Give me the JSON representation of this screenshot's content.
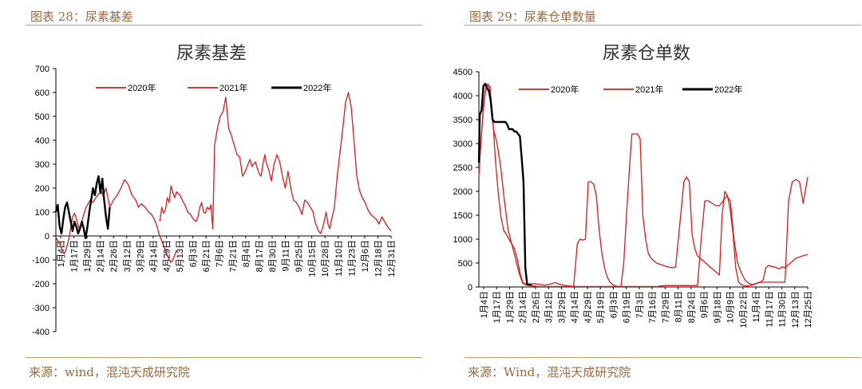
{
  "colors": {
    "caption": "#9c6a3c",
    "rule": "#c9a06a",
    "series_2020": "#d81e1e",
    "series_2021": "#d81e1e",
    "series_2022": "#000000"
  },
  "panels": [
    {
      "caption": "图表 28：尿素基差",
      "source": "来源：wind，混沌天成研究院"
    },
    {
      "caption": "图表 29：尿素仓单数量",
      "source": "来源：Wind，混沌天成研究院"
    }
  ],
  "chart_data": [
    {
      "type": "line",
      "title": "尿素基差",
      "xlabel": "",
      "ylabel": "",
      "ylim": [
        -400,
        700
      ],
      "yticks": [
        -400,
        -300,
        -200,
        -100,
        0,
        100,
        200,
        300,
        400,
        500,
        600,
        700
      ],
      "grid": false,
      "legend_position": "top",
      "x_tick_labels": [
        "1月4日",
        "1月17日",
        "1月29日",
        "2月14日",
        "2月26日",
        "3月12日",
        "3月29日",
        "4月14日",
        "4月29日",
        "5月13日",
        "6月3日",
        "6月21日",
        "7月6日",
        "7月21日",
        "8月4日",
        "8月17日",
        "8月30日",
        "9月11日",
        "9月25日",
        "10月15日",
        "10月28日",
        "11月10日",
        "11月23日",
        "12月6日",
        "12月18日",
        "12月31日"
      ],
      "x_day_range": [
        4,
        365
      ],
      "series": [
        {
          "name": "2020年",
          "x": [
            4,
            6,
            9,
            11,
            13,
            15,
            17,
            19,
            22,
            24,
            27,
            29,
            31,
            33,
            36,
            38,
            41,
            44,
            47,
            50,
            53,
            55,
            58,
            62,
            66,
            70,
            74,
            78,
            82,
            86,
            90,
            93,
            96,
            100,
            104,
            107,
            110,
            113,
            115,
            118,
            120,
            122,
            124,
            126,
            128,
            130,
            132,
            134
          ],
          "y": [
            -5,
            -20,
            -40,
            -60,
            -75,
            -55,
            -30,
            10,
            80,
            95,
            60,
            30,
            50,
            75,
            115,
            130,
            150,
            140,
            160,
            175,
            185,
            165,
            200,
            120,
            150,
            170,
            200,
            235,
            215,
            170,
            150,
            120,
            135,
            120,
            100,
            90,
            70,
            40,
            10,
            -20,
            -40,
            -60,
            -80,
            -100,
            -110,
            -100,
            -80,
            -60
          ]
        },
        {
          "name": "2021年",
          "x": [
            116,
            118,
            120,
            122,
            124,
            126,
            128,
            130,
            132,
            134,
            136,
            138,
            140,
            143,
            146,
            149,
            152,
            155,
            157,
            159,
            161,
            163,
            165,
            167,
            169,
            171,
            173,
            175,
            178,
            181,
            184,
            187,
            190,
            193,
            196,
            199,
            202,
            205,
            208,
            211,
            213,
            215,
            217,
            219,
            221,
            223,
            225,
            227,
            229,
            231,
            233,
            236,
            239,
            242,
            245,
            248,
            251,
            254,
            257,
            260,
            263,
            266,
            269,
            272,
            275,
            278,
            281,
            283,
            285,
            287,
            289,
            291,
            293,
            295,
            297,
            299,
            301,
            304,
            307,
            310,
            313,
            316,
            319,
            322,
            325,
            328,
            331,
            334,
            337,
            340,
            343,
            346,
            349,
            352,
            355,
            358,
            361,
            363,
            365
          ],
          "y": [
            60,
            120,
            95,
            110,
            160,
            140,
            210,
            180,
            160,
            185,
            175,
            170,
            150,
            130,
            100,
            90,
            70,
            60,
            80,
            120,
            140,
            100,
            95,
            120,
            110,
            130,
            30,
            380,
            450,
            500,
            520,
            580,
            450,
            420,
            380,
            340,
            330,
            250,
            270,
            300,
            320,
            290,
            300,
            310,
            280,
            260,
            250,
            300,
            340,
            300,
            280,
            230,
            300,
            340,
            310,
            250,
            200,
            270,
            200,
            150,
            140,
            120,
            90,
            150,
            140,
            120,
            100,
            60,
            40,
            20,
            10,
            30,
            60,
            100,
            50,
            30,
            70,
            120,
            250,
            350,
            450,
            560,
            600,
            540,
            400,
            250,
            190,
            160,
            140,
            110,
            90,
            80,
            70,
            50,
            80,
            60,
            40,
            30,
            20
          ]
        },
        {
          "name": "2022年",
          "x": [
            4,
            6,
            8,
            10,
            12,
            14,
            16,
            18,
            20,
            22,
            24,
            26,
            28,
            30,
            32,
            34,
            36,
            38,
            40,
            42,
            44,
            46,
            48,
            50,
            52,
            54,
            56,
            58,
            60,
            62
          ],
          "y": [
            100,
            130,
            40,
            10,
            70,
            120,
            140,
            100,
            60,
            20,
            60,
            40,
            10,
            30,
            60,
            30,
            -10,
            40,
            100,
            150,
            200,
            170,
            220,
            250,
            180,
            240,
            150,
            80,
            30,
            120
          ]
        }
      ]
    },
    {
      "type": "line",
      "title": "尿素仓单数",
      "xlabel": "",
      "ylabel": "",
      "ylim": [
        0,
        4500
      ],
      "yticks": [
        0,
        500,
        1000,
        1500,
        2000,
        2500,
        3000,
        3500,
        4000,
        4500
      ],
      "grid": false,
      "legend_position": "top",
      "x_tick_labels": [
        "1月4日",
        "1月17日",
        "1月29日",
        "2月14日",
        "2月26日",
        "3月12日",
        "3月29日",
        "4月14日",
        "4月29日",
        "5月19日",
        "6月3日",
        "6月19日",
        "7月3日",
        "7月16日",
        "7月29日",
        "8月11日",
        "8月24日",
        "9月6日",
        "9月18日",
        "10月9日",
        "10月22日",
        "11月4日",
        "11月17日",
        "11月30日",
        "12月13日",
        "12月25日"
      ],
      "x_day_range": [
        4,
        365
      ],
      "series": [
        {
          "name": "2020年",
          "x": [
            4,
            7,
            9,
            11,
            13,
            16,
            19,
            22,
            25,
            28,
            31,
            34,
            37,
            40,
            43,
            46,
            49,
            52,
            56,
            60,
            64,
            68,
            72,
            76,
            80,
            84,
            88,
            92,
            96,
            100,
            104,
            108,
            112,
            115,
            118,
            121,
            124,
            127,
            130,
            133,
            136,
            139,
            142,
            145,
            148,
            151,
            154,
            157,
            160,
            163,
            166,
            169,
            172,
            175,
            178,
            181,
            184,
            187,
            190,
            193,
            196,
            199,
            202,
            205,
            208,
            211,
            214,
            217,
            220,
            223,
            226,
            229,
            232,
            235,
            238,
            241,
            244,
            247,
            250,
            253,
            256,
            259,
            262,
            265,
            268,
            271,
            274,
            277,
            280,
            283,
            286,
            289,
            292,
            295,
            298,
            301,
            304,
            307,
            310,
            313,
            316,
            319,
            322,
            325,
            328,
            331,
            334,
            337,
            340,
            343,
            346,
            349,
            352,
            355,
            358,
            361,
            365
          ],
          "y": [
            2400,
            3200,
            3800,
            4100,
            4200,
            4200,
            3600,
            2700,
            2000,
            1500,
            1200,
            1100,
            1000,
            900,
            800,
            600,
            300,
            100,
            50,
            60,
            70,
            60,
            50,
            40,
            50,
            70,
            90,
            60,
            40,
            30,
            20,
            10,
            900,
            1000,
            980,
            1000,
            2200,
            2200,
            2150,
            1900,
            1200,
            700,
            400,
            200,
            100,
            50,
            20,
            10,
            10,
            500,
            1500,
            2400,
            3200,
            3200,
            3200,
            3100,
            1500,
            1000,
            700,
            600,
            550,
            500,
            480,
            460,
            440,
            420,
            410,
            400,
            420,
            1000,
            1600,
            2200,
            2300,
            2200,
            1100,
            800,
            650,
            600,
            550,
            500,
            450,
            400,
            350,
            300,
            250,
            1500,
            2000,
            1900,
            1600,
            1100,
            400,
            100,
            50,
            30,
            20,
            30,
            40,
            60,
            80,
            100,
            150,
            400,
            450,
            430,
            420,
            400,
            380,
            420,
            400,
            450,
            500,
            550,
            600,
            620,
            640,
            660,
            680
          ]
        },
        {
          "name": "2021年",
          "x": [
            4,
            6,
            8,
            10,
            12,
            14,
            16,
            18,
            20,
            24,
            28,
            32,
            36,
            40,
            44,
            48,
            52,
            56,
            60,
            64,
            68,
            72,
            76,
            80,
            84,
            88,
            92,
            96,
            100,
            104,
            108,
            112,
            116,
            120,
            124,
            128,
            132,
            136,
            140,
            144,
            148,
            152,
            156,
            160,
            164,
            168,
            172,
            176,
            180,
            184,
            188,
            192,
            196,
            200,
            204,
            208,
            212,
            216,
            220,
            224,
            228,
            232,
            236,
            240,
            244,
            248,
            252,
            256,
            260,
            264,
            268,
            272,
            276,
            280,
            284,
            288,
            292,
            296,
            300,
            304,
            308,
            312,
            316,
            320,
            324,
            328,
            332,
            336,
            340,
            344,
            348,
            352,
            356,
            360,
            365
          ],
          "y": [
            2300,
            3000,
            3500,
            3900,
            4200,
            4250,
            4100,
            3600,
            3300,
            3000,
            2500,
            1800,
            1200,
            900,
            600,
            300,
            80,
            40,
            30,
            20,
            10,
            10,
            10,
            10,
            10,
            10,
            10,
            10,
            10,
            10,
            10,
            10,
            10,
            10,
            10,
            10,
            10,
            10,
            10,
            10,
            10,
            10,
            10,
            10,
            10,
            10,
            10,
            10,
            10,
            10,
            10,
            10,
            10,
            10,
            20,
            30,
            30,
            30,
            30,
            30,
            30,
            30,
            30,
            30,
            30,
            1000,
            1800,
            1800,
            1750,
            1700,
            1700,
            1800,
            1900,
            1800,
            1000,
            500,
            300,
            150,
            80,
            50,
            70,
            100,
            100,
            100,
            100,
            100,
            100,
            100,
            100,
            1800,
            2200,
            2250,
            2200,
            1750,
            2300
          ]
        },
        {
          "name": "2022年",
          "x": [
            4,
            5,
            7,
            9,
            11,
            13,
            15,
            17,
            19,
            21,
            23,
            25,
            27,
            29,
            31,
            33,
            35,
            37,
            39,
            41,
            43,
            45,
            47,
            49,
            51,
            53,
            55,
            57,
            58,
            60,
            62
          ],
          "y": [
            2600,
            3600,
            3700,
            4200,
            4250,
            4150,
            4100,
            3900,
            3500,
            3450,
            3450,
            3450,
            3450,
            3450,
            3450,
            3450,
            3400,
            3300,
            3300,
            3300,
            3250,
            3250,
            3200,
            3150,
            2700,
            2200,
            400,
            50,
            50,
            50,
            50
          ]
        }
      ]
    }
  ]
}
